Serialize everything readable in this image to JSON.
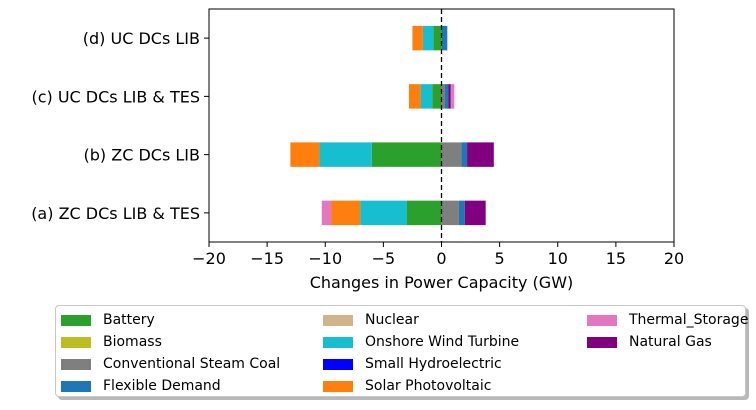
{
  "chart_data": {
    "type": "bar",
    "orientation": "horizontal",
    "stacked": true,
    "title": "",
    "xlabel": "Changes in Power Capacity (GW)",
    "ylabel": "",
    "xlim": [
      -20,
      20
    ],
    "xticks": [
      -20,
      -15,
      -10,
      -5,
      0,
      5,
      10,
      15,
      20
    ],
    "xtick_labels": [
      "−20",
      "−15",
      "−10",
      "−5",
      "0",
      "5",
      "10",
      "15",
      "20"
    ],
    "reference_line": {
      "x": 0,
      "style": "dashed"
    },
    "categories": [
      "(a) ZC DCs LIB & TES",
      "(b) ZC DCs LIB",
      "(c) UC DCs LIB & TES",
      "(d) UC DCs LIB"
    ],
    "series": [
      {
        "name": "Battery",
        "color": "#2ca02c",
        "values": [
          -3.0,
          -6.0,
          -0.8,
          -0.7
        ]
      },
      {
        "name": "Biomass",
        "color": "#bcbd22",
        "values": [
          0,
          0,
          0,
          0
        ]
      },
      {
        "name": "Conventional Steam Coal",
        "color": "#7f7f7f",
        "values": [
          1.5,
          1.7,
          0.3,
          0
        ]
      },
      {
        "name": "Flexible Demand",
        "color": "#1f77b4",
        "values": [
          0.5,
          0.5,
          0.3,
          0.5
        ]
      },
      {
        "name": "Nuclear",
        "color": "#d2b48c",
        "values": [
          0,
          0,
          0,
          0
        ]
      },
      {
        "name": "Onshore Wind Turbine",
        "color": "#17becf",
        "values": [
          -4.0,
          -4.5,
          -1.0,
          -0.9
        ]
      },
      {
        "name": "Small Hydroelectric",
        "color": "#0000ff",
        "values": [
          0,
          0,
          0,
          0
        ]
      },
      {
        "name": "Solar Photovoltaic",
        "color": "#ff7f0e",
        "values": [
          -2.5,
          -2.5,
          -1.0,
          -0.9
        ]
      },
      {
        "name": "Thermal_Storage",
        "color": "#e377c2",
        "values": [
          -0.8,
          0,
          0,
          0.0
        ]
      },
      {
        "name": "Natural Gas",
        "color": "#800080",
        "values": [
          1.8,
          2.3,
          0.2,
          0
        ]
      }
    ],
    "positive_extra": [
      {
        "name": "Thermal_Storage",
        "values": [
          0,
          0,
          0.3,
          0
        ]
      }
    ],
    "legend": {
      "position": "bottom",
      "columns": 3
    }
  }
}
